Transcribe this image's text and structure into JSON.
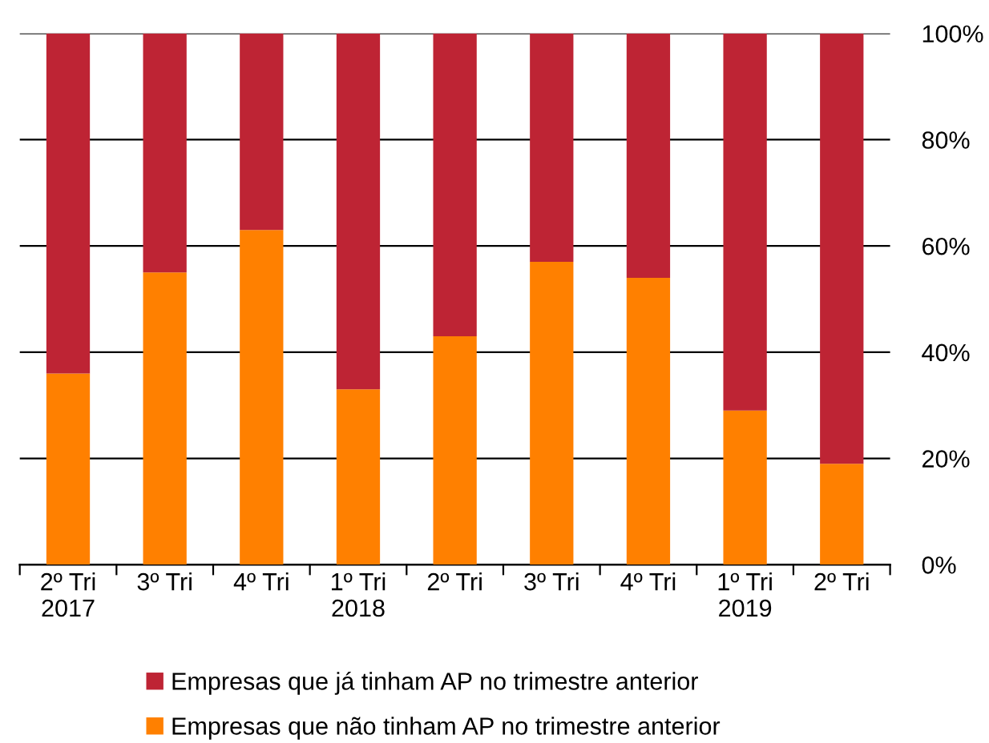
{
  "chart_data": {
    "type": "bar",
    "stacked": true,
    "categories": [
      "2º Tri\n2017",
      "3º Tri",
      "4º Tri",
      "1º Tri\n2018",
      "2º Tri",
      "3º Tri",
      "4º Tri",
      "1º Tri\n2019",
      "2º Tri"
    ],
    "series": [
      {
        "name": "Empresas que não tinham AP no trimestre anterior",
        "color": "#ff8000",
        "values": [
          36,
          55,
          63,
          33,
          43,
          57,
          54,
          29,
          19
        ]
      },
      {
        "name": "Empresas que já tinham AP no trimestre anterior",
        "color": "#be2434",
        "values": [
          64,
          45,
          37,
          67,
          57,
          43,
          46,
          71,
          81
        ]
      }
    ],
    "ylim": [
      0,
      100
    ],
    "yticks": [
      {
        "value": 0,
        "label": "0%"
      },
      {
        "value": 20,
        "label": "20%"
      },
      {
        "value": 40,
        "label": "40%"
      },
      {
        "value": 60,
        "label": "60%"
      },
      {
        "value": 80,
        "label": "80%"
      },
      {
        "value": 100,
        "label": "100%"
      }
    ],
    "grid": "y",
    "legend": "bottom"
  }
}
